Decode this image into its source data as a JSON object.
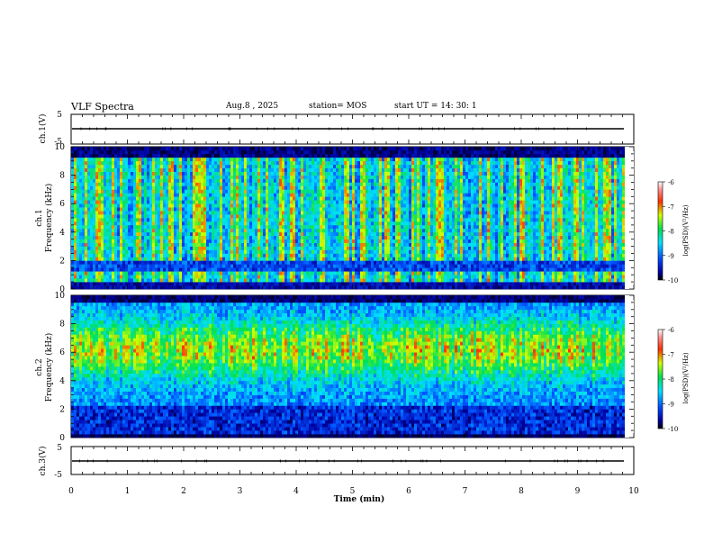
{
  "header": {
    "title": "VLF Spectra",
    "date": "Aug.8  , 2025",
    "station": "station= MOS",
    "start": "start  UT  =   14: 30: 1"
  },
  "chart_data": [
    {
      "type": "line",
      "panel": "ch1-waveform",
      "ylabel": "ch.1(V)",
      "yticks": [
        "5",
        "-5"
      ],
      "ylim": [
        -5,
        5
      ],
      "xlim": [
        0,
        10
      ],
      "description_level": 0
    },
    {
      "type": "heatmap",
      "panel": "ch1-spectrogram",
      "ylabel": [
        "ch.1",
        "Frequency (kHz)"
      ],
      "yticks": [
        "0",
        "2",
        "4",
        "6",
        "8",
        "10"
      ],
      "ylim": [
        0,
        10
      ],
      "xlim": [
        0,
        10
      ],
      "colorbar": {
        "ticks": [
          "-6",
          "-7",
          "-8",
          "-9",
          "-10"
        ],
        "range": [
          -10,
          -6
        ],
        "label": "log(PSD)(V²/Hz)"
      }
    },
    {
      "type": "heatmap",
      "panel": "ch2-spectrogram",
      "ylabel": [
        "ch.2",
        "Frequency (kHz)"
      ],
      "yticks": [
        "0",
        "2",
        "4",
        "6",
        "8",
        "10"
      ],
      "ylim": [
        0,
        10
      ],
      "xlim": [
        0,
        10
      ],
      "colorbar": {
        "ticks": [
          "-6",
          "-7",
          "-8",
          "-9",
          "-10"
        ],
        "range": [
          -10,
          -6
        ],
        "label": "log(PSD)(V²/Hz)"
      }
    },
    {
      "type": "line",
      "panel": "ch3-waveform",
      "ylabel": "ch.3(V)",
      "yticks": [
        "5",
        "-5"
      ],
      "ylim": [
        -5,
        5
      ],
      "xlim": [
        0,
        10
      ],
      "xlabel": "Time  (min)",
      "xticks": [
        "0",
        "1",
        "2",
        "3",
        "4",
        "5",
        "6",
        "7",
        "8",
        "9",
        "10"
      ]
    }
  ]
}
